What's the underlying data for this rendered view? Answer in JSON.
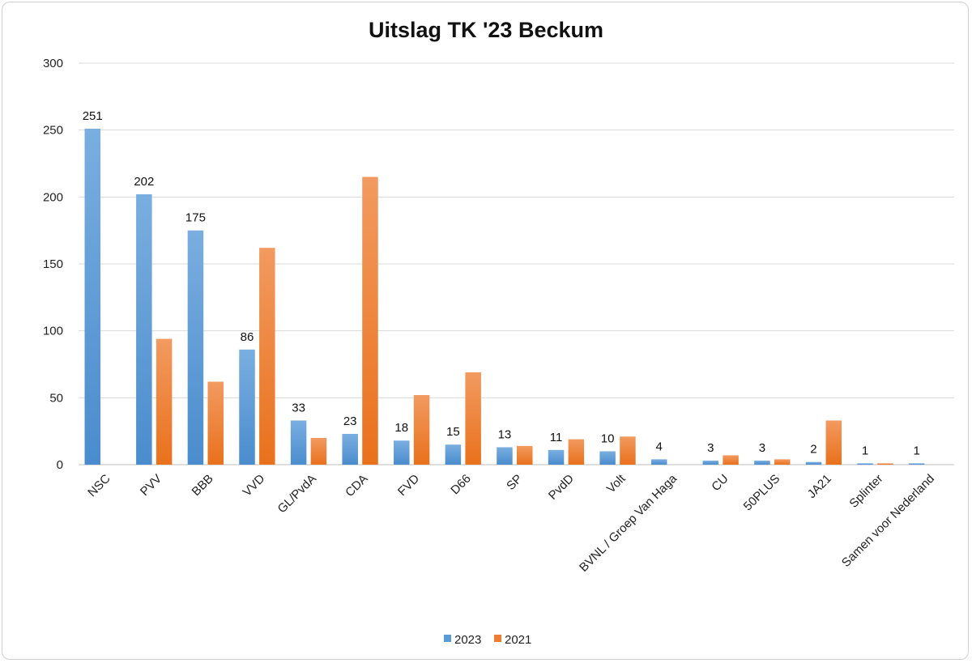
{
  "chart_data": {
    "type": "bar",
    "title": "Uitslag TK '23 Beckum",
    "xlabel": "",
    "ylabel": "",
    "ylim": [
      0,
      300
    ],
    "yticks": [
      0,
      50,
      100,
      150,
      200,
      250,
      300
    ],
    "grid": true,
    "legend_position": "bottom",
    "categories": [
      "NSC",
      "PVV",
      "BBB",
      "VVD",
      "GL/PvdA",
      "CDA",
      "FVD",
      "D66",
      "SP",
      "PvdD",
      "Volt",
      "BVNL / Groep Van Haga",
      "CU",
      "50PLUS",
      "JA21",
      "Splinter",
      "Samen voor Nederland"
    ],
    "series": [
      {
        "name": "2023",
        "color": "#5b9bd5",
        "values": [
          251,
          202,
          175,
          86,
          33,
          23,
          18,
          15,
          13,
          11,
          10,
          4,
          3,
          3,
          2,
          1,
          1
        ],
        "show_labels": true
      },
      {
        "name": "2021",
        "color": "#ed7d31",
        "values": [
          0,
          94,
          62,
          162,
          20,
          215,
          52,
          69,
          14,
          19,
          21,
          0,
          7,
          4,
          33,
          1,
          0
        ],
        "show_labels": false
      }
    ]
  }
}
